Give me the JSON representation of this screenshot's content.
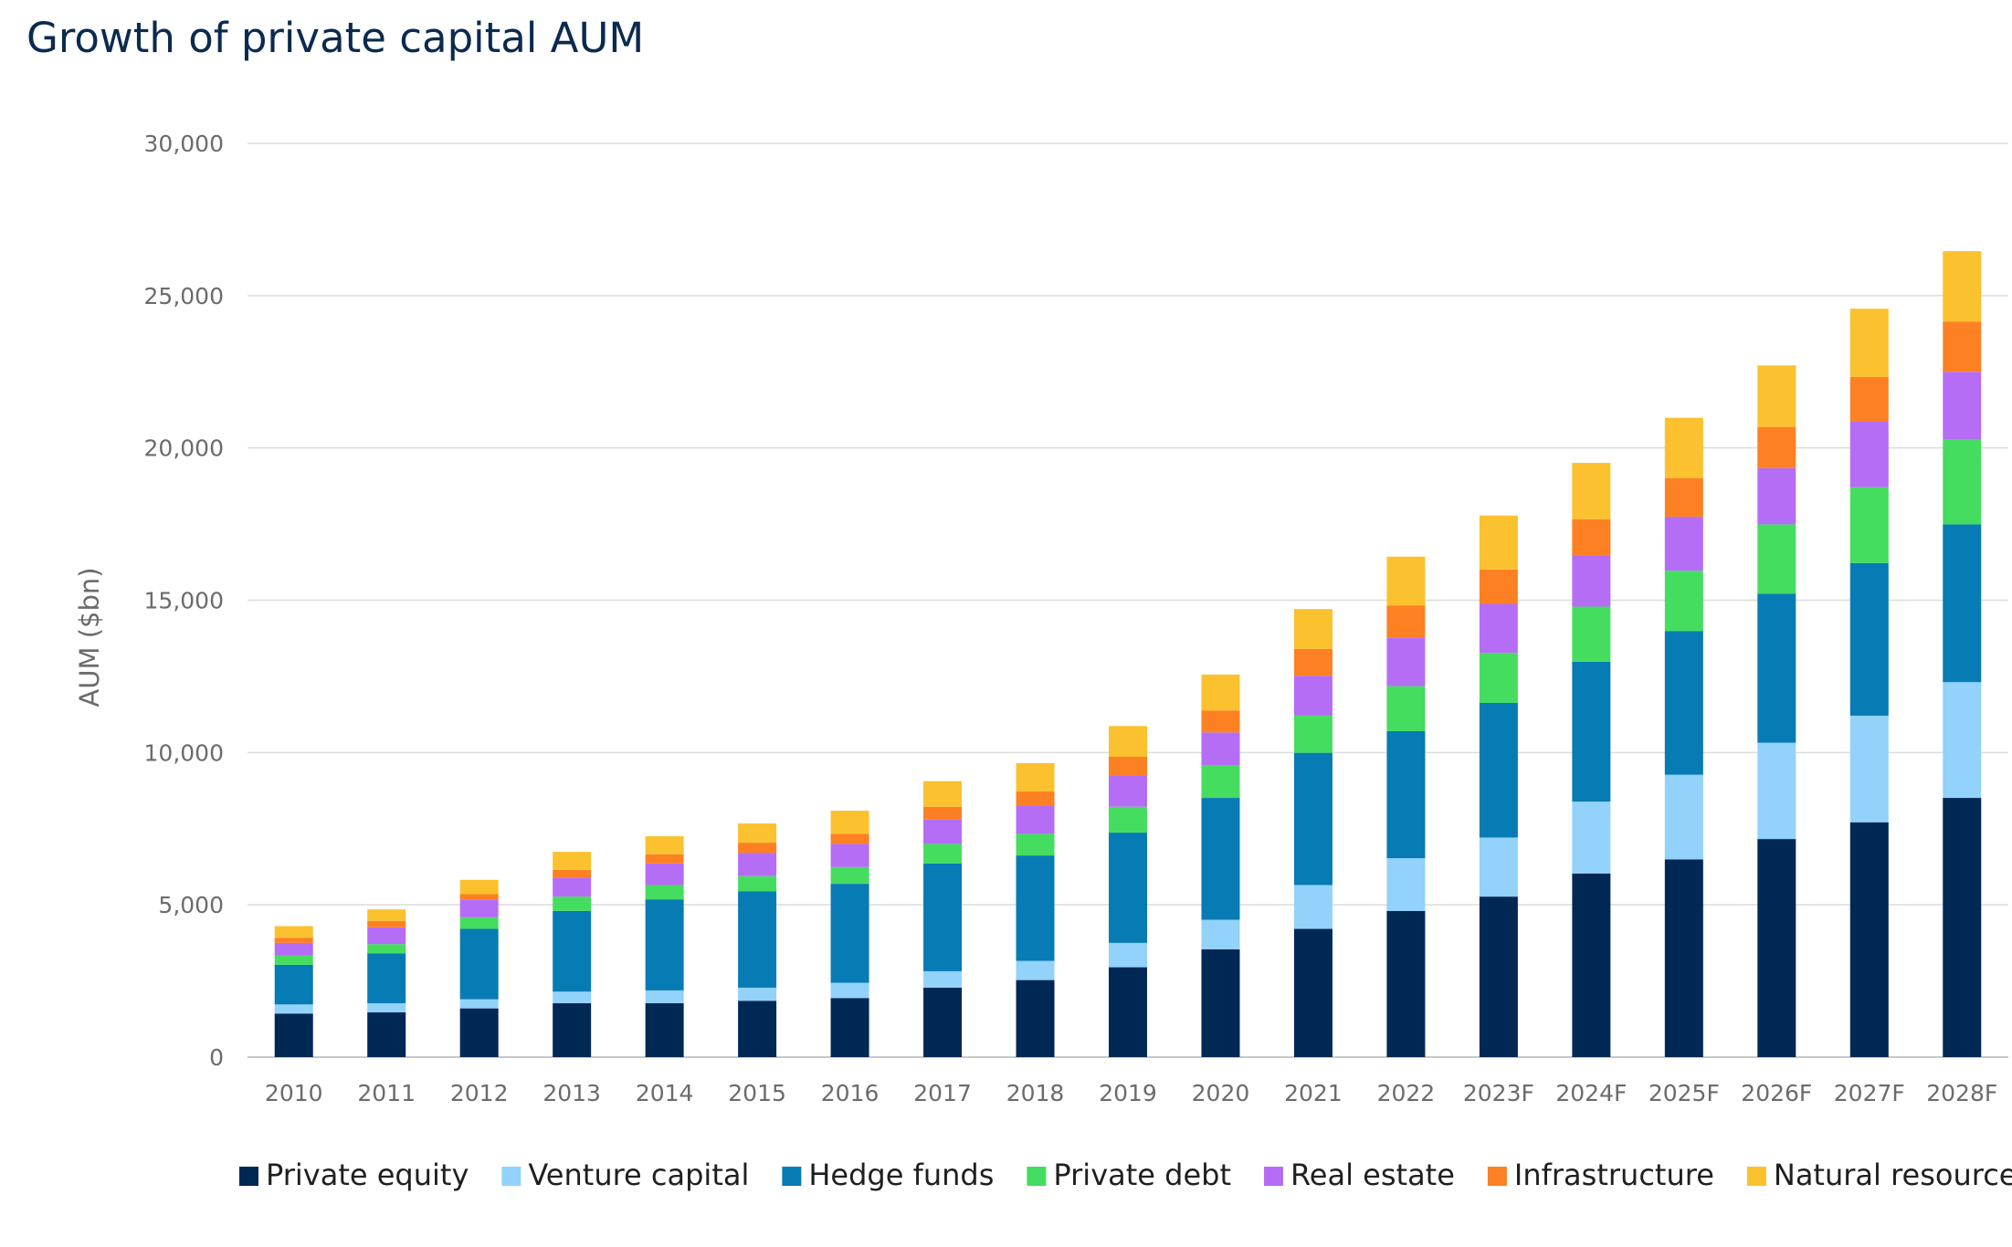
{
  "chart_data": {
    "type": "bar",
    "stacked": true,
    "title": "Growth of private capital AUM",
    "xlabel": "",
    "ylabel": "AUM ($bn)",
    "ylim": [
      0,
      30000
    ],
    "yticks": [
      0,
      5000,
      10000,
      15000,
      20000,
      25000,
      30000
    ],
    "ytick_labels": [
      "0",
      "5,000",
      "10,000",
      "15,000",
      "20,000",
      "25,000",
      "30,000"
    ],
    "grid": "horizontal",
    "legend_position": "bottom",
    "categories": [
      "2010",
      "2011",
      "2012",
      "2013",
      "2014",
      "2015",
      "2016",
      "2017",
      "2018",
      "2019",
      "2020",
      "2021",
      "2022",
      "2023F",
      "2024F",
      "2025F",
      "2026F",
      "2027F",
      "2028F"
    ],
    "series": [
      {
        "name": "Private equity",
        "color": "#002855",
        "values": [
          1430,
          1470,
          1600,
          1770,
          1770,
          1850,
          1940,
          2280,
          2530,
          2950,
          3540,
          4210,
          4800,
          5270,
          6030,
          6490,
          7160,
          7710,
          8510
        ]
      },
      {
        "name": "Venture capital",
        "color": "#92d2fb",
        "values": [
          300,
          300,
          300,
          380,
          420,
          430,
          500,
          540,
          630,
          800,
          970,
          1440,
          1730,
          1940,
          2360,
          2780,
          3160,
          3500,
          3800
        ]
      },
      {
        "name": "Hedge funds",
        "color": "#077bb4",
        "values": [
          1300,
          1640,
          2310,
          2650,
          2990,
          3160,
          3250,
          3540,
          3460,
          3620,
          4000,
          4340,
          4170,
          4420,
          4590,
          4720,
          4890,
          5010,
          5180
        ]
      },
      {
        "name": "Private debt",
        "color": "#45dd5f",
        "values": [
          300,
          300,
          380,
          470,
          470,
          500,
          550,
          640,
          710,
          850,
          1060,
          1220,
          1480,
          1640,
          1810,
          1980,
          2280,
          2490,
          2780
        ]
      },
      {
        "name": "Real estate",
        "color": "#b56df6",
        "values": [
          420,
          550,
          590,
          630,
          710,
          760,
          760,
          800,
          930,
          1010,
          1090,
          1310,
          1600,
          1610,
          1690,
          1770,
          1850,
          2150,
          2230
        ]
      },
      {
        "name": "Infrastructure",
        "color": "#fd8023",
        "values": [
          170,
          210,
          170,
          250,
          300,
          340,
          330,
          420,
          460,
          630,
          720,
          880,
          1050,
          1130,
          1180,
          1270,
          1350,
          1470,
          1650
        ]
      },
      {
        "name": "Natural resources",
        "color": "#fbc12e",
        "values": [
          380,
          380,
          470,
          590,
          590,
          630,
          760,
          840,
          930,
          1010,
          1180,
          1310,
          1600,
          1770,
          1850,
          1980,
          2020,
          2240,
          2310
        ]
      }
    ]
  }
}
